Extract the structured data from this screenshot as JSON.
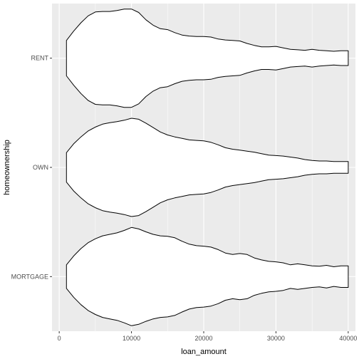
{
  "chart_data": {
    "type": "violin",
    "orientation": "horizontal",
    "xlabel": "loan_amount",
    "ylabel": "homeownership",
    "xlim": [
      -1000,
      41000
    ],
    "x_ticks": [
      0,
      10000,
      20000,
      30000,
      40000
    ],
    "x_tick_labels": [
      "0",
      "10000",
      "20000",
      "30000",
      "40000"
    ],
    "categories": [
      "RENT",
      "OWN",
      "MORTGAGE"
    ],
    "panel_background": "#ebebeb",
    "grid_color": "#ffffff",
    "violin_fill": "#ffffff",
    "violin_outline": "#000000",
    "series": [
      {
        "category": "RENT",
        "range": [
          1000,
          40000
        ],
        "density_profile": [
          [
            1000,
            0.36
          ],
          [
            2000,
            0.55
          ],
          [
            3000,
            0.72
          ],
          [
            4000,
            0.86
          ],
          [
            5000,
            0.94
          ],
          [
            6000,
            0.95
          ],
          [
            7000,
            0.95
          ],
          [
            8000,
            0.97
          ],
          [
            9000,
            1.0
          ],
          [
            10000,
            1.0
          ],
          [
            11000,
            0.93
          ],
          [
            12000,
            0.78
          ],
          [
            13000,
            0.67
          ],
          [
            14000,
            0.6
          ],
          [
            15000,
            0.58
          ],
          [
            16000,
            0.52
          ],
          [
            17000,
            0.47
          ],
          [
            18000,
            0.45
          ],
          [
            19000,
            0.44
          ],
          [
            20000,
            0.44
          ],
          [
            21000,
            0.43
          ],
          [
            22000,
            0.39
          ],
          [
            23000,
            0.37
          ],
          [
            24000,
            0.36
          ],
          [
            25000,
            0.35
          ],
          [
            26000,
            0.3
          ],
          [
            27000,
            0.26
          ],
          [
            28000,
            0.23
          ],
          [
            29000,
            0.23
          ],
          [
            30000,
            0.24
          ],
          [
            31000,
            0.21
          ],
          [
            32000,
            0.18
          ],
          [
            33000,
            0.17
          ],
          [
            34000,
            0.16
          ],
          [
            35000,
            0.18
          ],
          [
            36000,
            0.16
          ],
          [
            37000,
            0.15
          ],
          [
            38000,
            0.14
          ],
          [
            39000,
            0.15
          ],
          [
            40000,
            0.15
          ]
        ]
      },
      {
        "category": "OWN",
        "range": [
          1000,
          40000
        ],
        "density_profile": [
          [
            1000,
            0.3
          ],
          [
            2000,
            0.48
          ],
          [
            3000,
            0.62
          ],
          [
            4000,
            0.74
          ],
          [
            5000,
            0.82
          ],
          [
            6000,
            0.88
          ],
          [
            7000,
            0.91
          ],
          [
            8000,
            0.93
          ],
          [
            9000,
            0.96
          ],
          [
            10000,
            1.0
          ],
          [
            11000,
            0.98
          ],
          [
            12000,
            0.9
          ],
          [
            13000,
            0.81
          ],
          [
            14000,
            0.72
          ],
          [
            15000,
            0.66
          ],
          [
            16000,
            0.62
          ],
          [
            17000,
            0.59
          ],
          [
            18000,
            0.56
          ],
          [
            19000,
            0.55
          ],
          [
            20000,
            0.54
          ],
          [
            21000,
            0.51
          ],
          [
            22000,
            0.46
          ],
          [
            23000,
            0.4
          ],
          [
            24000,
            0.37
          ],
          [
            25000,
            0.35
          ],
          [
            26000,
            0.33
          ],
          [
            27000,
            0.31
          ],
          [
            28000,
            0.28
          ],
          [
            29000,
            0.25
          ],
          [
            30000,
            0.24
          ],
          [
            31000,
            0.23
          ],
          [
            32000,
            0.21
          ],
          [
            33000,
            0.19
          ],
          [
            34000,
            0.16
          ],
          [
            35000,
            0.14
          ],
          [
            36000,
            0.13
          ],
          [
            37000,
            0.13
          ],
          [
            38000,
            0.12
          ],
          [
            39000,
            0.12
          ],
          [
            40000,
            0.12
          ]
        ]
      },
      {
        "category": "MORTGAGE",
        "range": [
          1000,
          40000
        ],
        "density_profile": [
          [
            1000,
            0.24
          ],
          [
            2000,
            0.42
          ],
          [
            3000,
            0.57
          ],
          [
            4000,
            0.69
          ],
          [
            5000,
            0.77
          ],
          [
            6000,
            0.83
          ],
          [
            7000,
            0.86
          ],
          [
            8000,
            0.89
          ],
          [
            9000,
            0.94
          ],
          [
            10000,
            1.0
          ],
          [
            11000,
            0.97
          ],
          [
            12000,
            0.91
          ],
          [
            13000,
            0.86
          ],
          [
            14000,
            0.83
          ],
          [
            15000,
            0.82
          ],
          [
            16000,
            0.79
          ],
          [
            17000,
            0.72
          ],
          [
            18000,
            0.66
          ],
          [
            19000,
            0.63
          ],
          [
            20000,
            0.62
          ],
          [
            21000,
            0.6
          ],
          [
            22000,
            0.55
          ],
          [
            23000,
            0.48
          ],
          [
            24000,
            0.45
          ],
          [
            25000,
            0.47
          ],
          [
            26000,
            0.45
          ],
          [
            27000,
            0.38
          ],
          [
            28000,
            0.34
          ],
          [
            29000,
            0.31
          ],
          [
            30000,
            0.3
          ],
          [
            31000,
            0.28
          ],
          [
            32000,
            0.24
          ],
          [
            33000,
            0.26
          ],
          [
            34000,
            0.24
          ],
          [
            35000,
            0.22
          ],
          [
            36000,
            0.21
          ],
          [
            37000,
            0.23
          ],
          [
            38000,
            0.2
          ],
          [
            39000,
            0.22
          ],
          [
            40000,
            0.22
          ]
        ]
      }
    ]
  }
}
